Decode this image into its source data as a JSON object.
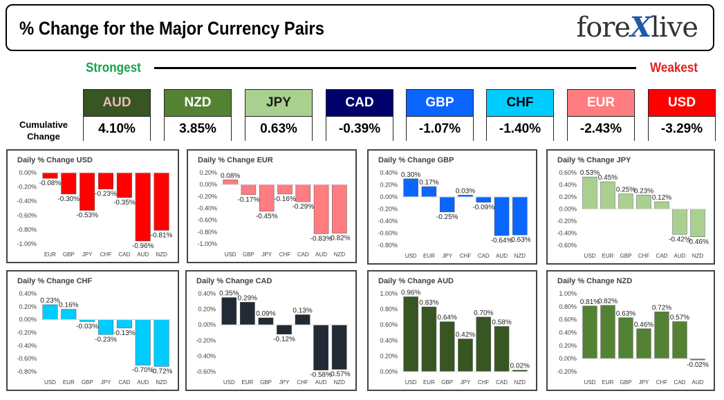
{
  "header": {
    "title": "% Change for the Major Currency Pairs",
    "logo_text_pre": "fore",
    "logo_text_x": "X",
    "logo_text_post": "live"
  },
  "strength": {
    "strongest_label": "Strongest",
    "weakest_label": "Weakest",
    "cumulative_label_1": "Cumulative",
    "cumulative_label_2": "Change"
  },
  "currencies": [
    {
      "code": "AUD",
      "value": "4.10%",
      "head_bg": "#375623",
      "head_fg": "#e7b9b9"
    },
    {
      "code": "NZD",
      "value": "3.85%",
      "head_bg": "#548235",
      "head_fg": "#ffffff"
    },
    {
      "code": "JPY",
      "value": "0.63%",
      "head_bg": "#a9d08e",
      "head_fg": "#1a1a1a"
    },
    {
      "code": "CAD",
      "value": "-0.39%",
      "head_bg": "#00006b",
      "head_fg": "#ffffff"
    },
    {
      "code": "GBP",
      "value": "-1.07%",
      "head_bg": "#0b66ff",
      "head_fg": "#ffffff"
    },
    {
      "code": "CHF",
      "value": "-1.40%",
      "head_bg": "#00ccff",
      "head_fg": "#000000"
    },
    {
      "code": "EUR",
      "value": "-2.43%",
      "head_bg": "#ff7c80",
      "head_fg": "#ffffff"
    },
    {
      "code": "USD",
      "value": "-3.29%",
      "head_bg": "#ff0000",
      "head_fg": "#ffffff"
    }
  ],
  "chart_data": [
    {
      "type": "bar",
      "title": "Daily % Change USD",
      "categories": [
        "EUR",
        "GBP",
        "JPY",
        "CHF",
        "CAD",
        "AUD",
        "NZD"
      ],
      "values": [
        -0.08,
        -0.3,
        -0.53,
        -0.23,
        -0.35,
        -0.96,
        -0.81
      ],
      "labels": [
        "-0.08%",
        "-0.30%",
        "-0.53%",
        "-0.23%",
        "-0.35%",
        "-0.96%",
        "-0.81%"
      ],
      "yticks": [
        0.0,
        -0.2,
        -0.4,
        -0.6,
        -0.8,
        -1.0
      ],
      "ytick_labels": [
        "0.00%",
        "-0.20%",
        "-0.40%",
        "-0.60%",
        "-0.80%",
        "-1.00%"
      ],
      "ylim": [
        -1.0,
        0.0
      ],
      "color": "#ff0000",
      "grid": false
    },
    {
      "type": "bar",
      "title": "Daily % Change EUR",
      "categories": [
        "USD",
        "GBP",
        "JPY",
        "CHF",
        "CAD",
        "AUD",
        "NZD"
      ],
      "values": [
        0.08,
        -0.17,
        -0.45,
        -0.16,
        -0.29,
        -0.83,
        -0.82
      ],
      "labels": [
        "0.08%",
        "-0.17%",
        "-0.45%",
        "-0.16%",
        "-0.29%",
        "-0.83%",
        "-0.82%"
      ],
      "yticks": [
        0.2,
        0.0,
        -0.2,
        -0.4,
        -0.6,
        -0.8,
        -1.0
      ],
      "ytick_labels": [
        "0.20%",
        "0.00%",
        "-0.20%",
        "-0.40%",
        "-0.60%",
        "-0.80%",
        "-1.00%"
      ],
      "ylim": [
        -1.0,
        0.2
      ],
      "color": "#ff7c80",
      "grid": false
    },
    {
      "type": "bar",
      "title": "Daily % Change GBP",
      "categories": [
        "USD",
        "EUR",
        "JPY",
        "CHF",
        "CAD",
        "AUD",
        "NZD"
      ],
      "values": [
        0.3,
        0.17,
        -0.25,
        0.03,
        -0.09,
        -0.64,
        -0.63
      ],
      "labels": [
        "0.30%",
        "0.17%",
        "-0.25%",
        "0.03%",
        "-0.09%",
        "-0.64%",
        "-0.63%"
      ],
      "yticks": [
        0.4,
        0.2,
        0.0,
        -0.2,
        -0.4,
        -0.6,
        -0.8
      ],
      "ytick_labels": [
        "0.40%",
        "0.20%",
        "0.00%",
        "-0.20%",
        "-0.40%",
        "-0.60%",
        "-0.80%"
      ],
      "ylim": [
        -0.8,
        0.4
      ],
      "color": "#0b66ff",
      "grid": false
    },
    {
      "type": "bar",
      "title": "Daily % Change JPY",
      "categories": [
        "USD",
        "EUR",
        "GBP",
        "CHF",
        "CAD",
        "AUD",
        "NZD"
      ],
      "values": [
        0.53,
        0.45,
        0.25,
        0.23,
        0.12,
        -0.42,
        -0.46
      ],
      "labels": [
        "0.53%",
        "0.45%",
        "0.25%",
        "0.23%",
        "0.12%",
        "-0.42%",
        "-0.46%"
      ],
      "yticks": [
        0.6,
        0.4,
        0.2,
        0.0,
        -0.2,
        -0.4,
        -0.6
      ],
      "ytick_labels": [
        "0.60%",
        "0.40%",
        "0.20%",
        "0.00%",
        "-0.20%",
        "-0.40%",
        "-0.60%"
      ],
      "ylim": [
        -0.6,
        0.6
      ],
      "color": "#a9d08e",
      "grid": false
    },
    {
      "type": "bar",
      "title": "Daily % Change CHF",
      "categories": [
        "USD",
        "EUR",
        "GBP",
        "JPY",
        "CAD",
        "AUD",
        "NZD"
      ],
      "values": [
        0.23,
        0.16,
        -0.03,
        -0.23,
        -0.13,
        -0.7,
        -0.72
      ],
      "labels": [
        "0.23%",
        "0.16%",
        "-0.03%",
        "-0.23%",
        "-0.13%",
        "-0.70%",
        "-0.72%"
      ],
      "yticks": [
        0.4,
        0.2,
        0.0,
        -0.2,
        -0.4,
        -0.6,
        -0.8
      ],
      "ytick_labels": [
        "0.40%",
        "0.20%",
        "0.00%",
        "-0.20%",
        "-0.40%",
        "-0.60%",
        "-0.80%"
      ],
      "ylim": [
        -0.8,
        0.4
      ],
      "color": "#00ccff",
      "grid": false
    },
    {
      "type": "bar",
      "title": "Daily % Change CAD",
      "categories": [
        "USD",
        "EUR",
        "GBP",
        "JPY",
        "CHF",
        "AUD",
        "NZD"
      ],
      "values": [
        0.35,
        0.29,
        0.09,
        -0.12,
        0.13,
        -0.58,
        -0.57
      ],
      "labels": [
        "0.35%",
        "0.29%",
        "0.09%",
        "-0.12%",
        "0.13%",
        "-0.58%",
        "-0.57%"
      ],
      "yticks": [
        0.4,
        0.2,
        0.0,
        -0.2,
        -0.4,
        -0.6
      ],
      "ytick_labels": [
        "0.40%",
        "0.20%",
        "0.00%",
        "-0.20%",
        "-0.40%",
        "-0.60%"
      ],
      "ylim": [
        -0.6,
        0.4
      ],
      "color": "#222a35",
      "grid": false
    },
    {
      "type": "bar",
      "title": "Daily % Change AUD",
      "categories": [
        "USD",
        "EUR",
        "GBP",
        "JPY",
        "CHF",
        "CAD",
        "NZD"
      ],
      "values": [
        0.96,
        0.83,
        0.64,
        0.42,
        0.7,
        0.58,
        0.02
      ],
      "labels": [
        "0.96%",
        "0.83%",
        "0.64%",
        "0.42%",
        "0.70%",
        "0.58%",
        "0.02%"
      ],
      "yticks": [
        1.0,
        0.8,
        0.6,
        0.4,
        0.2,
        0.0
      ],
      "ytick_labels": [
        "1.00%",
        "0.80%",
        "0.60%",
        "0.40%",
        "0.20%",
        "0.00%"
      ],
      "ylim": [
        0.0,
        1.0
      ],
      "color": "#375623",
      "grid": false
    },
    {
      "type": "bar",
      "title": "Daily % Change NZD",
      "categories": [
        "USD",
        "EUR",
        "GBP",
        "JPY",
        "CHF",
        "CAD",
        "AUD"
      ],
      "values": [
        0.81,
        0.82,
        0.63,
        0.46,
        0.72,
        0.57,
        -0.02
      ],
      "labels": [
        "0.81%",
        "0.82%",
        "0.63%",
        "0.46%",
        "0.72%",
        "0.57%",
        "-0.02%"
      ],
      "yticks": [
        1.0,
        0.8,
        0.6,
        0.4,
        0.2,
        0.0,
        -0.2
      ],
      "ytick_labels": [
        "1.00%",
        "0.80%",
        "0.60%",
        "0.40%",
        "0.20%",
        "0.00%",
        "-0.20%"
      ],
      "ylim": [
        -0.2,
        1.0
      ],
      "color": "#548235",
      "grid": false
    }
  ]
}
